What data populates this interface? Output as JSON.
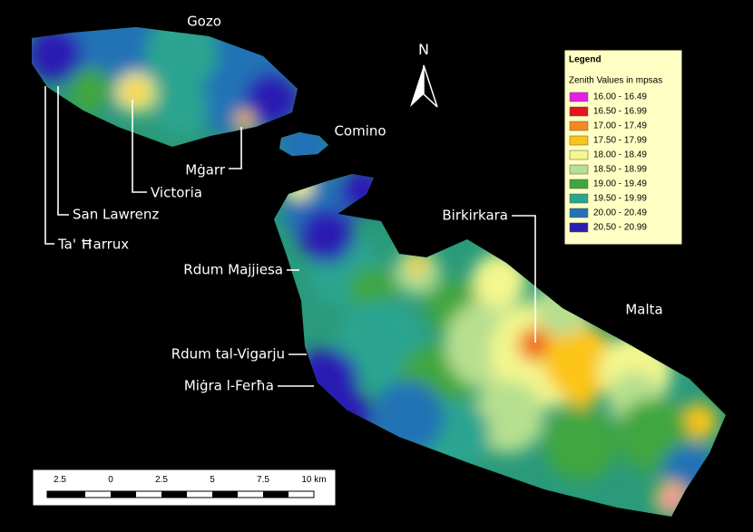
{
  "map": {
    "islands": [
      {
        "label": "Gozo"
      },
      {
        "label": "Comino"
      },
      {
        "label": "Malta"
      }
    ],
    "places": [
      {
        "label": "Mġarr"
      },
      {
        "label": "Victoria"
      },
      {
        "label": "San Lawrenz"
      },
      {
        "label": "Ta' Ħarrux"
      },
      {
        "label": "Rdum Majjiesa"
      },
      {
        "label": "Rdum tal-Vigarju"
      },
      {
        "label": "Miġra l-Ferħa"
      },
      {
        "label": "Birkirkara"
      }
    ],
    "north_arrow": "N",
    "legend": {
      "title": "Legend",
      "subtitle": "Zenith Values in mpsas",
      "items": [
        {
          "label": "16.00 - 16.49",
          "color": "#e61fe6"
        },
        {
          "label": "16.50 - 16.99",
          "color": "#e3161b"
        },
        {
          "label": "17.00 - 17.49",
          "color": "#f5891c"
        },
        {
          "label": "17.50 - 17.99",
          "color": "#fcc419"
        },
        {
          "label": "18.00 - 18.49",
          "color": "#f3f78e"
        },
        {
          "label": "18.50 - 18.99",
          "color": "#b6df8f"
        },
        {
          "label": "19.00 - 19.49",
          "color": "#3fa63f"
        },
        {
          "label": "19.50 - 19.99",
          "color": "#2ba490"
        },
        {
          "label": "20.00 - 20.49",
          "color": "#2272b6"
        },
        {
          "label": "20.50 - 20.99",
          "color": "#2b1cb3"
        }
      ]
    },
    "scale_bar": {
      "labels": [
        "2.5",
        "0",
        "2.5",
        "5",
        "7.5",
        "10 km"
      ]
    }
  }
}
